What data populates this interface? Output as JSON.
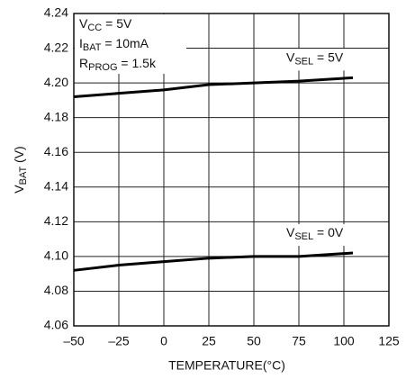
{
  "chart_data": {
    "type": "line",
    "annotations": [
      {
        "text": "V",
        "sub": "CC",
        "tail": " = 5V"
      },
      {
        "text": "I",
        "sub": "BAT",
        "tail": " = 10mA"
      },
      {
        "text": "R",
        "sub": "PROG",
        "tail": " = 1.5k"
      }
    ],
    "xlabel": "TEMPERATURE(°C)",
    "ylabel": {
      "text": "V",
      "sub": "BAT",
      "tail": " (V)"
    },
    "x": [
      -50,
      -25,
      0,
      25,
      50,
      75,
      105
    ],
    "series": [
      {
        "label": {
          "text": "V",
          "sub": "SEL",
          "tail": " = 5V"
        },
        "color": "#000000",
        "values": [
          4.192,
          4.194,
          4.196,
          4.199,
          4.2,
          4.201,
          4.203
        ]
      },
      {
        "label": {
          "text": "V",
          "sub": "SEL",
          "tail": " = 0V"
        },
        "color": "#000000",
        "values": [
          4.092,
          4.095,
          4.097,
          4.099,
          4.1,
          4.1,
          4.102
        ]
      }
    ],
    "xlim": [
      -50,
      125
    ],
    "ylim": [
      4.06,
      4.24
    ],
    "xticks": [
      {
        "value": -50,
        "label": "–50"
      },
      {
        "value": -25,
        "label": "–25"
      },
      0,
      25,
      50,
      75,
      100,
      125
    ],
    "yticks": [
      4.06,
      4.08,
      {
        "value": 4.1,
        "label": "4.10"
      },
      4.12,
      4.14,
      4.16,
      4.18,
      {
        "value": 4.2,
        "label": "4.20"
      },
      4.22,
      4.24
    ],
    "grid": true
  }
}
